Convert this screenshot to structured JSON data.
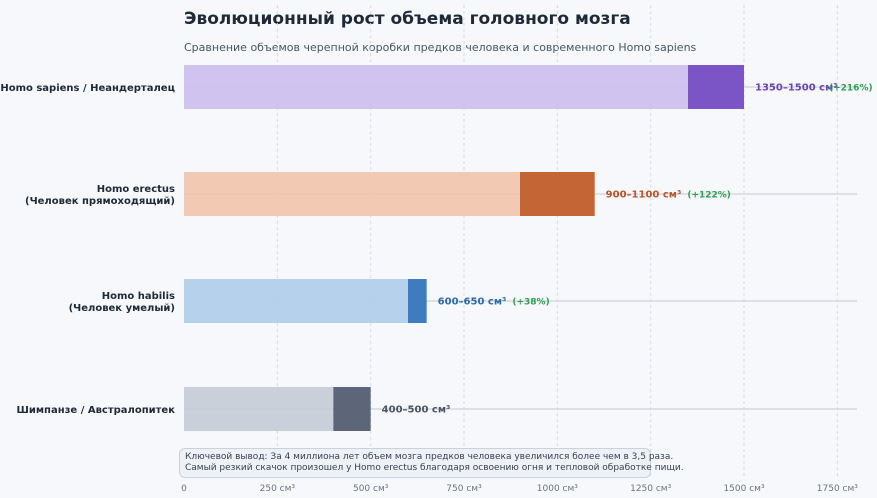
{
  "header": {
    "title": "Эволюционный рост объема головного мозга",
    "subtitle": "Сравнение объемов черепной коробки предков человека и современного Homo sapiens"
  },
  "note": {
    "line1": "Ключевой вывод: За 4 миллиона лет объем мозга предков человека увеличился более чем в 3,5 раза.",
    "line2": "Самый резкий скачок произошел у Homo erectus благодаря освоению огня и тепловой обработке пищи."
  },
  "chart_data": {
    "type": "bar",
    "orientation": "horizontal",
    "title": "Эволюционный рост объема головного мозга",
    "subtitle": "Сравнение объемов черепной коробки предков человека и современного Homo sapiens",
    "xlim": [
      0,
      1800
    ],
    "xticks": [
      0,
      250,
      500,
      750,
      1000,
      1250,
      1500,
      1750
    ],
    "xtick_labels": [
      "0",
      "250 см³",
      "500 см³",
      "750 см³",
      "1000 см³",
      "1250 см³",
      "1500 см³",
      "1750 см³"
    ],
    "grid": true,
    "categories": [
      {
        "label_lines": [
          "Homo sapiens / Неандерталец"
        ],
        "min": 1350,
        "max": 1500,
        "range_label": "1350–1500 см³",
        "change_label": "(+216%)",
        "light_color": "#cfc0ef",
        "dark_color": "#7b55c6",
        "text_color": "#6a44b8"
      },
      {
        "label_lines": [
          "Homo erectus",
          "(Человек прямоходящий)"
        ],
        "min": 900,
        "max": 1100,
        "range_label": "900–1100 см³",
        "change_label": "(+122%)",
        "light_color": "#f1c6ae",
        "dark_color": "#c46535",
        "text_color": "#b8552a"
      },
      {
        "label_lines": [
          "Homo habilis",
          "(Человек умелый)"
        ],
        "min": 600,
        "max": 650,
        "range_label": "600–650 см³",
        "change_label": "(+38%)",
        "light_color": "#b1cfea",
        "dark_color": "#3f7cbf",
        "text_color": "#2f6aa8"
      },
      {
        "label_lines": [
          "Шимпанзе / Австралопитек"
        ],
        "min": 400,
        "max": 500,
        "range_label": "400–500 см³",
        "change_label": "",
        "light_color": "#c7cdd8",
        "dark_color": "#5c6678",
        "text_color": "#4b5563"
      }
    ],
    "change_color": "#2f9e55"
  }
}
